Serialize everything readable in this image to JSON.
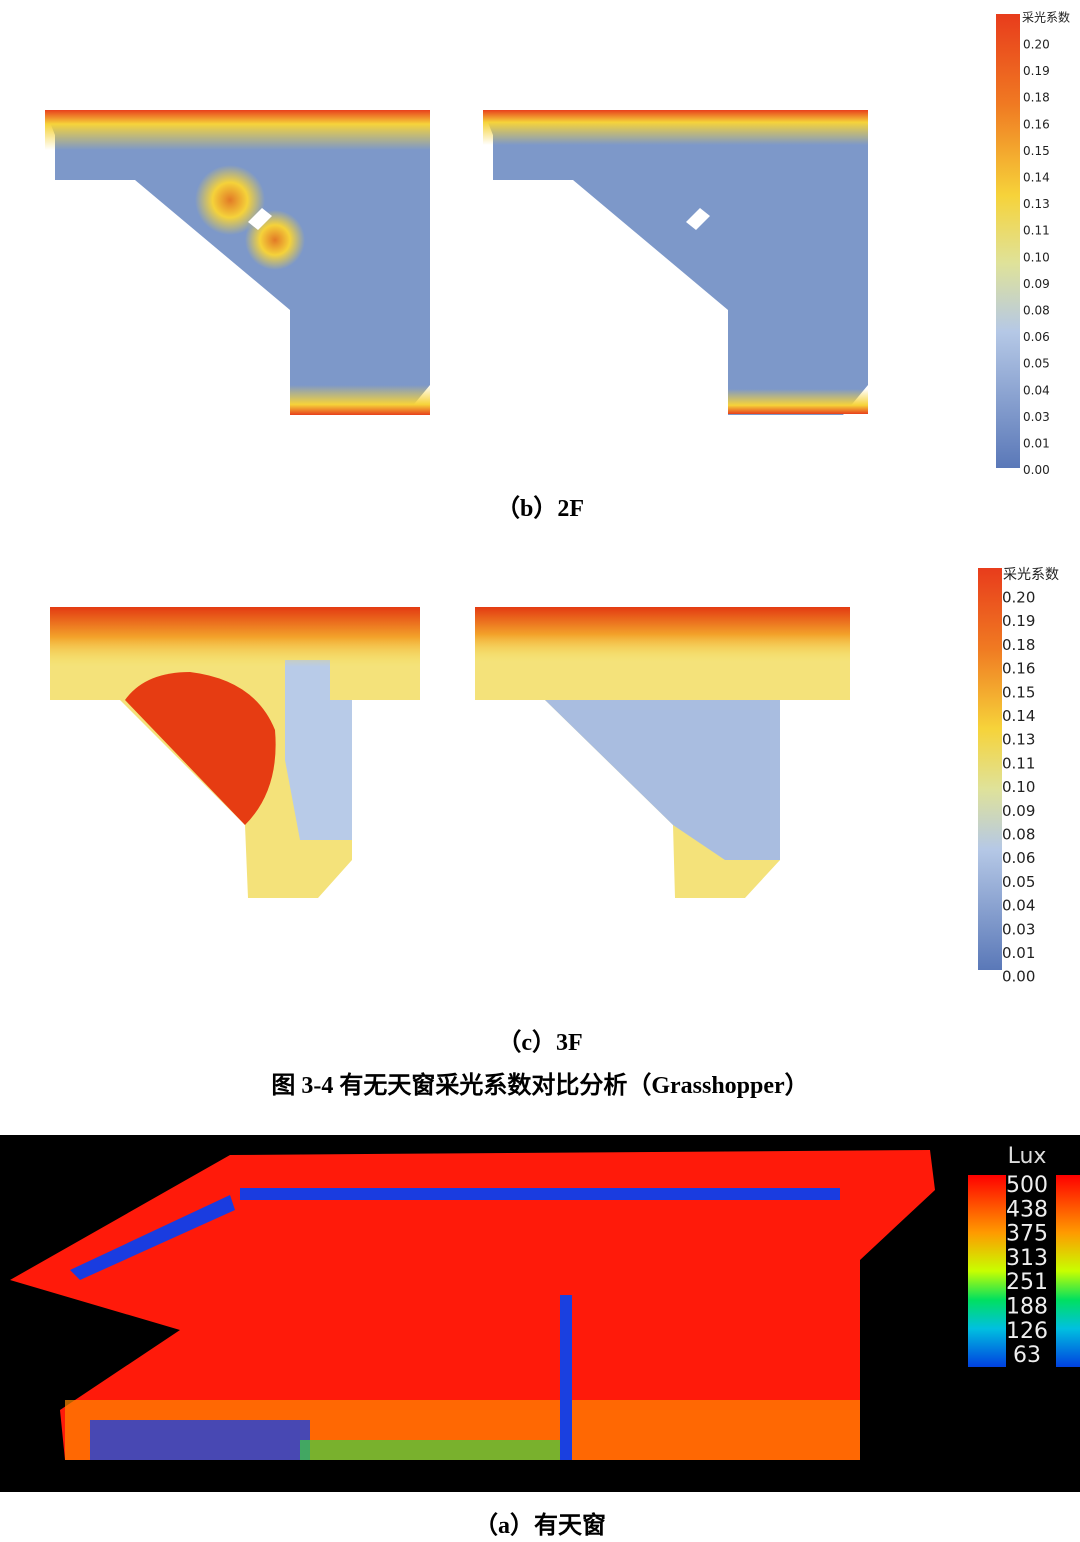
{
  "figure_b": {
    "legend_title": "采光系数",
    "legend_labels": [
      "0.20",
      "0.19",
      "0.18",
      "0.16",
      "0.15",
      "0.14",
      "0.13",
      "0.11",
      "0.10",
      "0.09",
      "0.08",
      "0.06",
      "0.05",
      "0.04",
      "0.03",
      "0.01",
      "0.00"
    ],
    "caption": "（b）2F"
  },
  "figure_c": {
    "legend_title": "采光系数",
    "legend_labels": [
      "0.20",
      "0.19",
      "0.18",
      "0.16",
      "0.15",
      "0.14",
      "0.13",
      "0.11",
      "0.10",
      "0.09",
      "0.08",
      "0.06",
      "0.05",
      "0.04",
      "0.03",
      "0.01",
      "0.00"
    ],
    "caption": "（c）3F"
  },
  "figure_title": "图 3-4 有无天窗采光系数对比分析（Grasshopper）",
  "figure_a": {
    "legend_title": "Lux",
    "legend_labels": [
      "500",
      "438",
      "375",
      "313",
      "251",
      "188",
      "126",
      "63"
    ],
    "caption": "（a）有天窗"
  }
}
